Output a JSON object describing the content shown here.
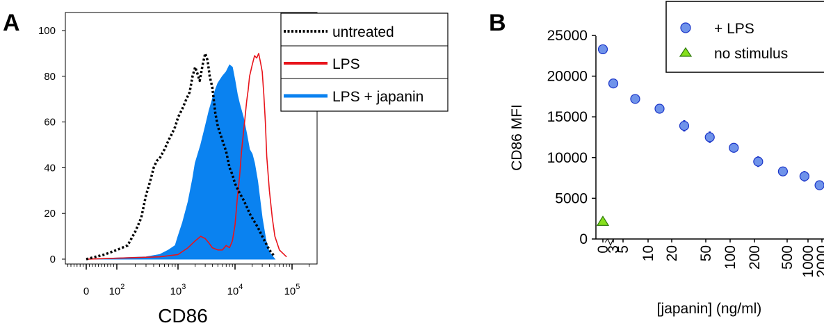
{
  "panels": {
    "a": {
      "letter": "A"
    },
    "b": {
      "letter": "B"
    }
  },
  "colors": {
    "untreated": "#000000",
    "lps": "#e8141b",
    "lps_japanin": "#0a82f0",
    "marker_lps": "#6f93ea",
    "marker_lps_edge": "#1a34c8",
    "marker_nostim": "#86e01c",
    "marker_nostim_edge": "#2e7a0a"
  },
  "chart_data": [
    {
      "type": "area",
      "panel": "A",
      "xlabel": "CD86",
      "ylabel": "",
      "x_scale": "log (biexponential)",
      "ylim": [
        0,
        100
      ],
      "y_ticks": [
        "0",
        "20",
        "40",
        "60",
        "80",
        "100"
      ],
      "x_ticks": [
        {
          "label": "0",
          "value": 0
        },
        {
          "label": "10",
          "exp": "2",
          "value": 100
        },
        {
          "label": "10",
          "exp": "3",
          "value": 1000
        },
        {
          "label": "10",
          "exp": "4",
          "value": 10000
        },
        {
          "label": "10",
          "exp": "5",
          "value": 100000
        }
      ],
      "legend_position": "top-right",
      "series": [
        {
          "name": "untreated",
          "style": "dotted",
          "x": [
            0,
            30,
            60,
            100,
            150,
            200,
            250,
            300,
            350,
            400,
            450,
            500,
            600,
            700,
            800,
            900,
            1000,
            1200,
            1400,
            1600,
            1800,
            2000,
            2200,
            2400,
            2700,
            3000,
            3300,
            3600,
            4000,
            4500,
            5000,
            6000,
            7000,
            8000,
            9000,
            10000,
            12000,
            14000,
            16000,
            18000,
            20000,
            25000,
            30000,
            40000,
            50000
          ],
          "y": [
            0,
            1,
            2,
            4,
            6,
            12,
            18,
            28,
            34,
            40,
            43,
            44,
            48,
            52,
            55,
            58,
            62,
            66,
            70,
            73,
            80,
            84,
            81,
            78,
            85,
            90,
            87,
            80,
            75,
            64,
            58,
            52,
            47,
            40,
            37,
            33,
            29,
            26,
            23,
            20,
            18,
            14,
            10,
            4,
            1
          ]
        },
        {
          "name": "LPS",
          "style": "solid",
          "x": [
            0,
            500,
            1000,
            1500,
            2000,
            2500,
            3000,
            3500,
            4000,
            5000,
            6000,
            7000,
            8000,
            9000,
            10000,
            11000,
            12000,
            13000,
            14000,
            15000,
            16000,
            17000,
            18000,
            20000,
            22000,
            24000,
            26000,
            28000,
            30000,
            32000,
            34000,
            36000,
            40000,
            45000,
            50000,
            60000,
            80000
          ],
          "y": [
            0,
            1,
            2,
            5,
            8,
            10,
            9,
            7,
            5,
            4,
            4,
            6,
            5,
            8,
            15,
            27,
            36,
            47,
            55,
            62,
            69,
            74,
            80,
            85,
            89,
            88,
            90,
            86,
            82,
            72,
            60,
            45,
            30,
            18,
            10,
            4,
            1
          ]
        },
        {
          "name": "LPS + japanin",
          "style": "filled",
          "x": [
            0,
            300,
            500,
            700,
            900,
            1000,
            1200,
            1500,
            1800,
            2000,
            2500,
            3000,
            3500,
            4000,
            4500,
            5000,
            6000,
            7000,
            8000,
            9000,
            10000,
            11000,
            12000,
            14000,
            16000,
            18000,
            20000,
            22000,
            25000,
            30000,
            35000,
            40000,
            50000
          ],
          "y": [
            0,
            1,
            2,
            4,
            6,
            10,
            16,
            25,
            35,
            42,
            50,
            58,
            65,
            70,
            74,
            77,
            80,
            82,
            85,
            84,
            78,
            72,
            68,
            62,
            55,
            48,
            46,
            42,
            34,
            18,
            8,
            3,
            0
          ]
        }
      ]
    },
    {
      "type": "scatter",
      "panel": "B",
      "ylabel": "CD86 MFI",
      "xlabel": "[japanin] (ng/ml)",
      "ylim": [
        0,
        25000
      ],
      "y_ticks": [
        "0",
        "5000",
        "10000",
        "15000",
        "20000",
        "25000"
      ],
      "x_ticks": [
        "0",
        "3",
        "5",
        "10",
        "20",
        "50",
        "100",
        "200",
        "500",
        "1000",
        "2000"
      ],
      "legend_position": "top-right",
      "series": [
        {
          "name": "+ LPS",
          "marker": "circle",
          "points": [
            {
              "x": 0,
              "y": 23300,
              "err": 0
            },
            {
              "x": 3,
              "y": 19100,
              "err": 0
            },
            {
              "x": 7,
              "y": 17200,
              "err": 0
            },
            {
              "x": 14,
              "y": 16000,
              "err": 0
            },
            {
              "x": 28,
              "y": 13900,
              "err": 700
            },
            {
              "x": 56,
              "y": 12500,
              "err": 700
            },
            {
              "x": 111,
              "y": 11200,
              "err": 0
            },
            {
              "x": 222,
              "y": 9500,
              "err": 650
            },
            {
              "x": 444,
              "y": 8300,
              "err": 0
            },
            {
              "x": 889,
              "y": 7700,
              "err": 650
            },
            {
              "x": 1778,
              "y": 6600,
              "err": 300
            }
          ]
        },
        {
          "name": "no stimulus",
          "marker": "triangle",
          "points": [
            {
              "x": 0,
              "y": 2100,
              "err": 0
            }
          ]
        }
      ]
    }
  ]
}
